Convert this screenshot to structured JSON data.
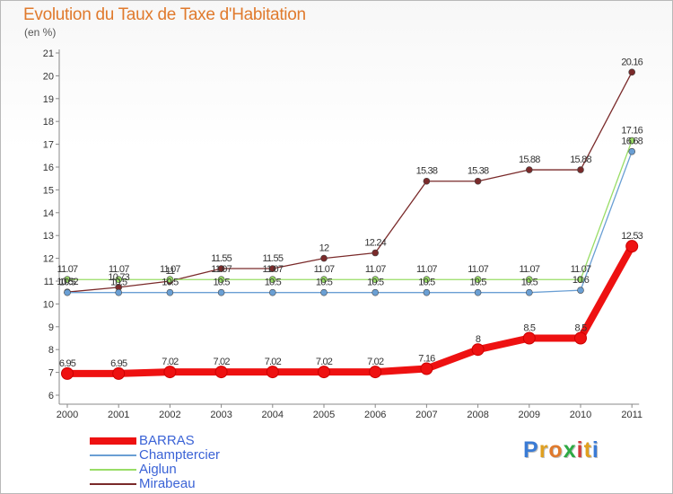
{
  "title": "Evolution du Taux de Taxe d'Habitation",
  "subtitle": "(en %)",
  "logo": {
    "text": "Proxiti",
    "letters": [
      {
        "ch": "P",
        "color": "#3a7bd5"
      },
      {
        "ch": "r",
        "color": "#e0a020"
      },
      {
        "ch": "o",
        "color": "#e07a2d"
      },
      {
        "ch": "x",
        "color": "#2eaa44"
      },
      {
        "ch": "i",
        "color": "#d23c3c"
      },
      {
        "ch": "t",
        "color": "#e0a020"
      },
      {
        "ch": "i",
        "color": "#3a7bd5"
      }
    ]
  },
  "chart_data": {
    "type": "line",
    "title": "Evolution du Taux de Taxe d'Habitation",
    "ylabel": "(en %)",
    "xlabel": "",
    "categories": [
      "2000",
      "2001",
      "2002",
      "2003",
      "2004",
      "2005",
      "2006",
      "2007",
      "2008",
      "2009",
      "2010",
      "2011"
    ],
    "ylim": [
      6,
      21
    ],
    "yticks": [
      "6",
      "7",
      "8",
      "9",
      "10",
      "11",
      "12",
      "13",
      "14",
      "15",
      "16",
      "17",
      "18",
      "19",
      "20",
      "21"
    ],
    "grid": false,
    "legend_position": "bottom-left",
    "series": [
      {
        "name": "BARRAS",
        "color": "#ee1111",
        "values": [
          6.95,
          6.95,
          7.02,
          7.02,
          7.02,
          7.02,
          7.02,
          7.16,
          8,
          8.5,
          8.5,
          12.53
        ],
        "labels": [
          "6.95",
          "6.95",
          "7.02",
          "7.02",
          "7.02",
          "7.02",
          "7.02",
          "7.16",
          "8",
          "8.5",
          "8.5",
          "12.53"
        ]
      },
      {
        "name": "Champtercier",
        "color": "#6a9fd4",
        "values": [
          10.5,
          10.5,
          10.5,
          10.5,
          10.5,
          10.5,
          10.5,
          10.5,
          10.5,
          10.5,
          10.6,
          16.68
        ],
        "labels": [
          "10.5",
          "10.5",
          "10.5",
          "10.5",
          "10.5",
          "10.5",
          "10.5",
          "10.5",
          "10.5",
          "10.5",
          "10.6",
          "16.68"
        ]
      },
      {
        "name": "Aiglun",
        "color": "#99dd66",
        "values": [
          11.07,
          11.07,
          11.07,
          11.07,
          11.07,
          11.07,
          11.07,
          11.07,
          11.07,
          11.07,
          11.07,
          17.16
        ],
        "labels": [
          "11.07",
          "11.07",
          "11.07",
          "11.07",
          "11.07",
          "11.07",
          "11.07",
          "11.07",
          "11.07",
          "11.07",
          "11.07",
          "17.16"
        ]
      },
      {
        "name": "Mirabeau",
        "color": "#7a2a2a",
        "values": [
          10.52,
          10.73,
          11,
          11.55,
          11.55,
          12,
          12.24,
          15.38,
          15.38,
          15.88,
          15.88,
          20.16
        ],
        "labels": [
          "10.52",
          "10.73",
          "11",
          "11.55",
          "11.55",
          "12",
          "12.24",
          "15.38",
          "15.38",
          "15.88",
          "15.88",
          "20.16"
        ]
      }
    ]
  }
}
